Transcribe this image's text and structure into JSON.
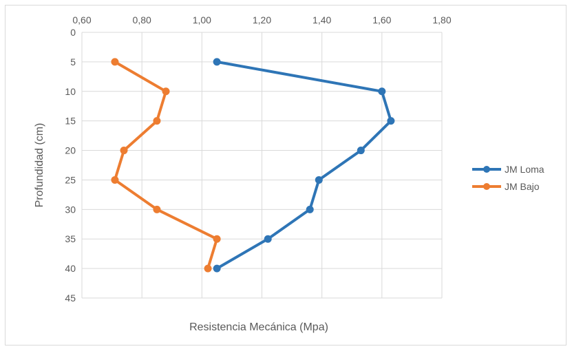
{
  "chart_data": {
    "type": "line",
    "xlabel": "Resistencia Mecánica (Mpa)",
    "ylabel": "Profundidad (cm)",
    "xlim": [
      0.6,
      1.8
    ],
    "ylim": [
      0,
      45
    ],
    "x_ticks": [
      "0,60",
      "0,80",
      "1,00",
      "1,20",
      "1,40",
      "1,60",
      "1,80"
    ],
    "y_ticks": [
      "0",
      "5",
      "10",
      "15",
      "20",
      "25",
      "30",
      "35",
      "40",
      "45"
    ],
    "x_axis_position": "top",
    "y_axis_reversed": true,
    "grid": true,
    "legend_position": "right",
    "series": [
      {
        "name": "JM Loma",
        "color": "#2e75b6",
        "points": [
          {
            "x": 1.05,
            "y": 5
          },
          {
            "x": 1.6,
            "y": 10
          },
          {
            "x": 1.63,
            "y": 15
          },
          {
            "x": 1.53,
            "y": 20
          },
          {
            "x": 1.39,
            "y": 25
          },
          {
            "x": 1.36,
            "y": 30
          },
          {
            "x": 1.22,
            "y": 35
          },
          {
            "x": 1.05,
            "y": 40
          }
        ]
      },
      {
        "name": "JM Bajo",
        "color": "#ed7d31",
        "points": [
          {
            "x": 0.71,
            "y": 5
          },
          {
            "x": 0.88,
            "y": 10
          },
          {
            "x": 0.85,
            "y": 15
          },
          {
            "x": 0.74,
            "y": 20
          },
          {
            "x": 0.71,
            "y": 25
          },
          {
            "x": 0.85,
            "y": 30
          },
          {
            "x": 1.05,
            "y": 35
          },
          {
            "x": 1.02,
            "y": 40
          }
        ]
      }
    ]
  }
}
